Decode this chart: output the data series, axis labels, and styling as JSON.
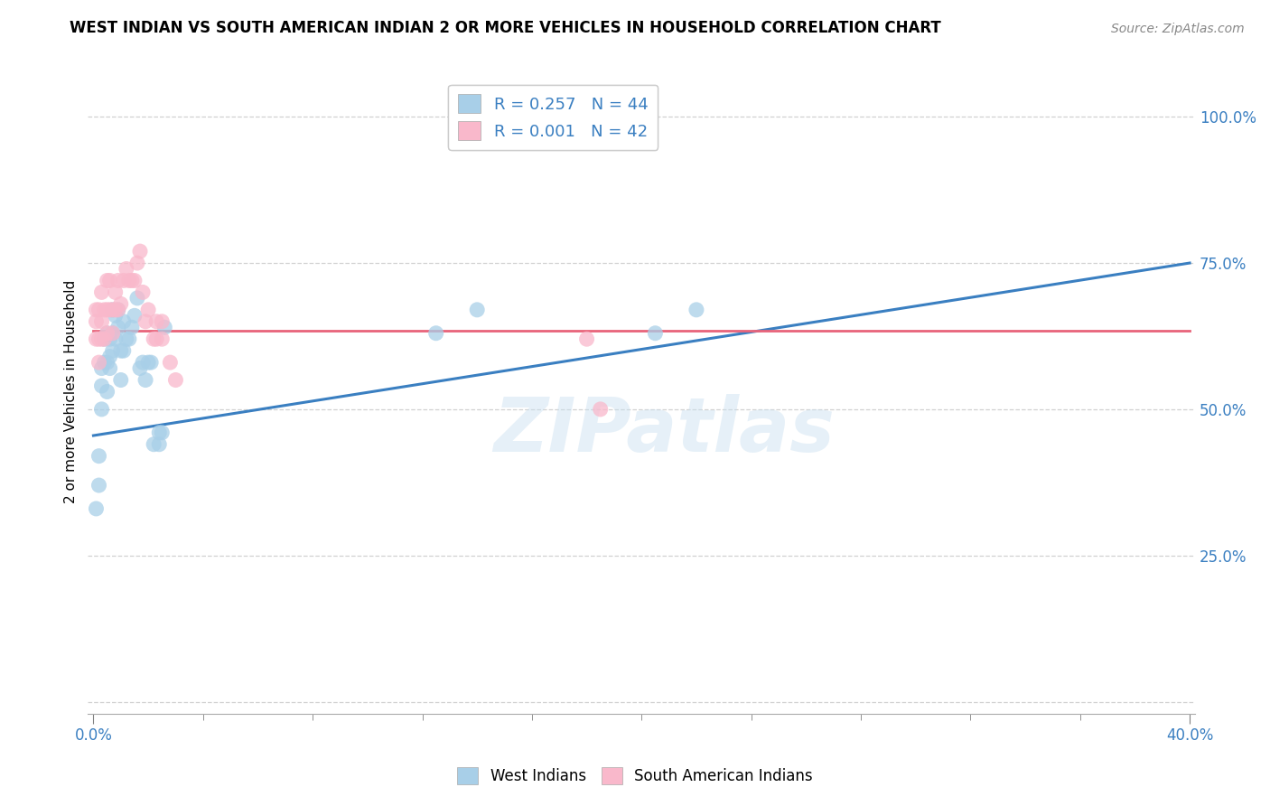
{
  "title": "WEST INDIAN VS SOUTH AMERICAN INDIAN 2 OR MORE VEHICLES IN HOUSEHOLD CORRELATION CHART",
  "source": "Source: ZipAtlas.com",
  "ylabel": "2 or more Vehicles in Household",
  "xlim": [
    -0.002,
    0.402
  ],
  "ylim": [
    -0.02,
    1.08
  ],
  "blue_color": "#a8cfe8",
  "pink_color": "#f9b8cb",
  "blue_line_color": "#3a7fc1",
  "pink_line_color": "#e8637a",
  "legend_label_blue": "West Indians",
  "legend_label_pink": "South American Indians",
  "watermark": "ZIPatlas",
  "blue_x": [
    0.001,
    0.002,
    0.002,
    0.003,
    0.003,
    0.003,
    0.004,
    0.004,
    0.005,
    0.005,
    0.005,
    0.006,
    0.006,
    0.006,
    0.007,
    0.007,
    0.007,
    0.008,
    0.008,
    0.009,
    0.009,
    0.01,
    0.01,
    0.011,
    0.011,
    0.012,
    0.013,
    0.014,
    0.015,
    0.016,
    0.017,
    0.018,
    0.019,
    0.02,
    0.021,
    0.022,
    0.024,
    0.024,
    0.025,
    0.026,
    0.125,
    0.14,
    0.205,
    0.22
  ],
  "blue_y": [
    0.33,
    0.37,
    0.42,
    0.5,
    0.54,
    0.57,
    0.58,
    0.62,
    0.53,
    0.58,
    0.63,
    0.57,
    0.59,
    0.62,
    0.6,
    0.63,
    0.67,
    0.62,
    0.66,
    0.64,
    0.67,
    0.55,
    0.6,
    0.6,
    0.65,
    0.62,
    0.62,
    0.64,
    0.66,
    0.69,
    0.57,
    0.58,
    0.55,
    0.58,
    0.58,
    0.44,
    0.44,
    0.46,
    0.46,
    0.64,
    0.63,
    0.67,
    0.63,
    0.67
  ],
  "pink_x": [
    0.001,
    0.001,
    0.001,
    0.002,
    0.002,
    0.002,
    0.003,
    0.003,
    0.003,
    0.004,
    0.004,
    0.005,
    0.005,
    0.005,
    0.006,
    0.006,
    0.007,
    0.007,
    0.008,
    0.008,
    0.009,
    0.009,
    0.01,
    0.011,
    0.012,
    0.013,
    0.014,
    0.015,
    0.016,
    0.017,
    0.018,
    0.019,
    0.02,
    0.022,
    0.023,
    0.023,
    0.025,
    0.025,
    0.028,
    0.03,
    0.18,
    0.185
  ],
  "pink_y": [
    0.62,
    0.65,
    0.67,
    0.58,
    0.62,
    0.67,
    0.62,
    0.65,
    0.7,
    0.62,
    0.67,
    0.63,
    0.67,
    0.72,
    0.67,
    0.72,
    0.63,
    0.67,
    0.67,
    0.7,
    0.67,
    0.72,
    0.68,
    0.72,
    0.74,
    0.72,
    0.72,
    0.72,
    0.75,
    0.77,
    0.7,
    0.65,
    0.67,
    0.62,
    0.62,
    0.65,
    0.62,
    0.65,
    0.58,
    0.55,
    0.62,
    0.5
  ],
  "blue_trend_x0": 0.0,
  "blue_trend_y0": 0.455,
  "blue_trend_x1": 0.4,
  "blue_trend_y1": 0.75,
  "pink_trend_x0": 0.0,
  "pink_trend_y0": 0.635,
  "pink_trend_x1": 0.4,
  "pink_trend_y1": 0.635
}
